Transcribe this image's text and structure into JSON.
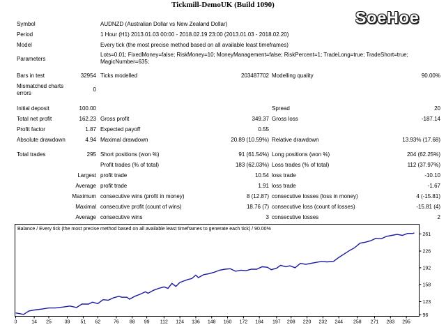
{
  "window": {
    "title": "Tickmill-DemoUK (Build 1090)",
    "watermark": "SoeHoe"
  },
  "report": {
    "symbol_label": "Symbol",
    "symbol_value": "AUDNZD (Australian Dollar vs New Zealand Dollar)",
    "period_label": "Period",
    "period_value": "1 Hour (H1) 2013.01.03 00:00 - 2018.02.19 23:00 (2013.01.03 - 2018.02.20)",
    "model_label": "Model",
    "model_value": "Every tick (the most precise method based on all available least timeframes)",
    "parameters_label": "Parameters",
    "parameters_line1": "Lots=0.01; FixedMoney=false; RiskMoney=10; MoneyManagement=false; RiskPercent=1; TradeLong=true; TradeShort=true;",
    "parameters_line2": "MagicNumber=635;",
    "bars_label": "Bars in test",
    "bars_value": "32954",
    "ticks_label": "Ticks modelled",
    "ticks_value": "203487702",
    "quality_label": "Modelling quality",
    "quality_value": "90.00%",
    "mismatch_label_1": "Mismatched charts",
    "mismatch_label_2": "errors",
    "mismatch_value": "0",
    "deposit_label": "Initial deposit",
    "deposit_value": "100.00",
    "spread_label": "Spread",
    "spread_value": "20",
    "net_profit_label": "Total net profit",
    "net_profit_value": "162.23",
    "gross_profit_label": "Gross profit",
    "gross_profit_value": "349.37",
    "gross_loss_label": "Gross loss",
    "gross_loss_value": "-187.14",
    "profit_factor_label": "Profit factor",
    "profit_factor_value": "1.87",
    "payoff_label": "Expected payoff",
    "payoff_value": "0.55",
    "abs_dd_label": "Absolute drawdown",
    "abs_dd_value": "4.94",
    "max_dd_label": "Maximal drawdown",
    "max_dd_value": "20.89 (10.59%)",
    "rel_dd_label": "Relative drawdown",
    "rel_dd_value": "13.93% (17.68)",
    "total_trades_label": "Total trades",
    "total_trades_value": "295",
    "short_label": "Short positions (won %)",
    "short_value": "91 (61.54%)",
    "long_label": "Long positions (won %)",
    "long_value": "204 (62.25%)",
    "profit_trades_label": "Profit trades (% of total)",
    "profit_trades_value": "183 (62.03%)",
    "loss_trades_label": "Loss trades (% of total)",
    "loss_trades_value": "112 (37.97%)",
    "largest_label": "Largest",
    "largest_profit_label": "profit trade",
    "largest_profit_value": "10.54",
    "largest_loss_label": "loss trade",
    "largest_loss_value": "-10.10",
    "average_label": "Average",
    "average_profit_label": "profit trade",
    "average_profit_value": "1.91",
    "average_loss_label": "loss trade",
    "average_loss_value": "-1.67",
    "maximum_label": "Maximum",
    "max_cons_wins_label": "consecutive wins (profit in money)",
    "max_cons_wins_value": "8 (12.87)",
    "max_cons_losses_label": "consecutive losses (loss in money)",
    "max_cons_losses_value": "4 (-15.81)",
    "maximal_label": "Maximal",
    "maximal_profit_label": "consecutive profit (count of wins)",
    "maximal_profit_value": "18.76 (7)",
    "maximal_loss_label": "consecutive loss (count of losses)",
    "maximal_loss_value": "-15.81 (4)",
    "average2_label": "Average",
    "avg_cons_wins_label": "consecutive wins",
    "avg_cons_wins_value": "3",
    "avg_cons_losses_label": "consecutive losses",
    "avg_cons_losses_value": "2"
  },
  "chart_data": {
    "type": "line",
    "title": "Balance / Every tick (the most precise method based on all available least timeframes to generate each tick) / 90.00%",
    "series_color": "#1a1aa0",
    "xlabel": "",
    "ylabel": "",
    "xlim": [
      0,
      301
    ],
    "ylim": [
      96,
      275
    ],
    "x_ticks": [
      0,
      14,
      25,
      39,
      51,
      62,
      76,
      88,
      99,
      112,
      124,
      136,
      148,
      160,
      172,
      184,
      197,
      208,
      220,
      232,
      244,
      258,
      271,
      283,
      295
    ],
    "y_ticks": [
      96,
      123,
      158,
      192,
      226,
      261
    ],
    "x": [
      0,
      6,
      10,
      14,
      20,
      25,
      30,
      36,
      41,
      46,
      50,
      55,
      58,
      62,
      66,
      70,
      74,
      78,
      80,
      84,
      86,
      90,
      94,
      98,
      100,
      104,
      108,
      112,
      115,
      118,
      121,
      124,
      127,
      130,
      133,
      136,
      138,
      142,
      146,
      150,
      154,
      158,
      162,
      166,
      170,
      174,
      178,
      182,
      186,
      190,
      193,
      197,
      200,
      204,
      207,
      211,
      215,
      219,
      223,
      227,
      231,
      235,
      240,
      244,
      248,
      252,
      256,
      260,
      264,
      268,
      272,
      276,
      280,
      284,
      288,
      292,
      296,
      300,
      301
    ],
    "values": [
      100,
      97,
      104,
      106,
      108,
      110,
      110,
      112,
      114,
      111,
      118,
      118,
      122,
      119,
      127,
      126,
      131,
      134,
      132,
      132,
      128,
      134,
      138,
      143,
      140,
      146,
      150,
      153,
      150,
      160,
      154,
      162,
      165,
      168,
      170,
      177,
      172,
      178,
      180,
      183,
      187,
      189,
      190,
      185,
      187,
      186,
      189,
      189,
      194,
      193,
      188,
      191,
      197,
      194,
      196,
      192,
      201,
      199,
      201,
      203,
      205,
      204,
      205,
      213,
      220,
      227,
      233,
      242,
      244,
      247,
      252,
      251,
      256,
      258,
      260,
      258,
      262,
      262,
      263
    ]
  }
}
